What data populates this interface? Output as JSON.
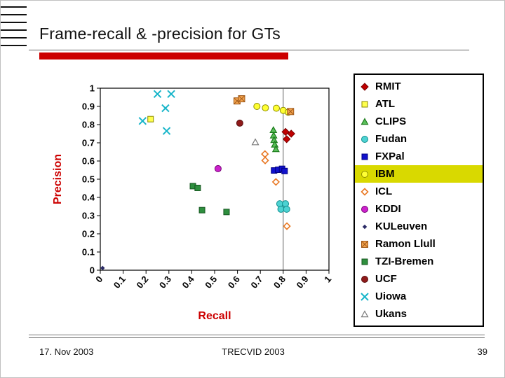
{
  "slide": {
    "title": "Frame-recall & -precision for GTs"
  },
  "footer": {
    "date": "17. Nov 2003",
    "center": "TRECVID 2003",
    "page": "39"
  },
  "colors": {
    "accent_red": "#cc0000",
    "legend_highlight": "#d9d900"
  },
  "chart_data": {
    "type": "scatter",
    "title": "",
    "xlabel": "Recall",
    "ylabel": "Precision",
    "xlim": [
      0,
      1
    ],
    "ylim": [
      0,
      1
    ],
    "grid_x": [
      0.8
    ],
    "legend_position": "right",
    "xtick_labels": [
      "0",
      "0.1",
      "0.2",
      "0.3",
      "0.4",
      "0.5",
      "0.6",
      "0.7",
      "0.8",
      "0.9",
      "1"
    ],
    "ytick_labels": [
      "0",
      "0.1",
      "0.2",
      "0.3",
      "0.4",
      "0.5",
      "0.6",
      "0.7",
      "0.8",
      "0.9",
      "1"
    ],
    "series": [
      {
        "label": "RMIT",
        "marker": "diamond",
        "fill": "#c00000",
        "stroke": "#7a0000",
        "size": 5,
        "points": [
          [
            0.81,
            0.76
          ],
          [
            0.835,
            0.75
          ],
          [
            0.815,
            0.72
          ]
        ]
      },
      {
        "label": "ATL",
        "marker": "square",
        "fill": "#ffff4d",
        "stroke": "#8a8a00",
        "points": [
          [
            0.22,
            0.83
          ]
        ]
      },
      {
        "label": "CLIPS",
        "marker": "triangle",
        "fill": "#5abf5a",
        "stroke": "#1a7a1a",
        "points": [
          [
            0.757,
            0.77
          ],
          [
            0.758,
            0.74
          ],
          [
            0.76,
            0.715
          ],
          [
            0.763,
            0.69
          ],
          [
            0.768,
            0.665
          ]
        ]
      },
      {
        "label": "Fudan",
        "marker": "circle",
        "fill": "#4dd2d2",
        "stroke": "#0f8f8f",
        "points": [
          [
            0.785,
            0.365
          ],
          [
            0.81,
            0.365
          ],
          [
            0.79,
            0.335
          ],
          [
            0.815,
            0.335
          ]
        ]
      },
      {
        "label": "FXPal",
        "marker": "square",
        "fill": "#1111cc",
        "stroke": "#000080",
        "points": [
          [
            0.76,
            0.548
          ],
          [
            0.778,
            0.552
          ],
          [
            0.795,
            0.557
          ],
          [
            0.806,
            0.545
          ]
        ]
      },
      {
        "label": "IBM",
        "marker": "circle",
        "fill": "#ffff33",
        "stroke": "#8f8f00",
        "highlighted": true,
        "points": [
          [
            0.685,
            0.9
          ],
          [
            0.722,
            0.892
          ],
          [
            0.77,
            0.89
          ],
          [
            0.8,
            0.878
          ],
          [
            0.822,
            0.868
          ]
        ]
      },
      {
        "label": "ICL",
        "marker": "diamond-open",
        "fill": "none",
        "stroke": "#e87722",
        "points": [
          [
            0.72,
            0.638
          ],
          [
            0.721,
            0.603
          ],
          [
            0.768,
            0.485
          ],
          [
            0.816,
            0.242
          ]
        ]
      },
      {
        "label": "KDDI",
        "marker": "circle",
        "fill": "#cc22cc",
        "stroke": "#770077",
        "points": [
          [
            0.515,
            0.558
          ]
        ]
      },
      {
        "label": "KULeuven",
        "marker": "diamond",
        "fill": "#2b2b66",
        "stroke": "#2b2b66",
        "size": 2.5,
        "points": [
          [
            0.01,
            0.012
          ]
        ]
      },
      {
        "label": "Ramon Llull",
        "marker": "square-hatch",
        "fill": "#f2a24d",
        "stroke": "#a05a1a",
        "points": [
          [
            0.598,
            0.93
          ],
          [
            0.618,
            0.942
          ],
          [
            0.832,
            0.872
          ]
        ]
      },
      {
        "label": "TZI-Bremen",
        "marker": "square",
        "fill": "#2e8f3e",
        "stroke": "#14541e",
        "points": [
          [
            0.405,
            0.462
          ],
          [
            0.426,
            0.452
          ],
          [
            0.445,
            0.33
          ],
          [
            0.552,
            0.32
          ]
        ]
      },
      {
        "label": "UCF",
        "marker": "circle",
        "fill": "#8f1a1a",
        "stroke": "#5a0f0f",
        "points": [
          [
            0.61,
            0.808
          ]
        ]
      },
      {
        "label": "Uiowa",
        "marker": "x",
        "fill": "none",
        "stroke": "#17b5c9",
        "size": 5,
        "points": [
          [
            0.25,
            0.968
          ],
          [
            0.31,
            0.968
          ],
          [
            0.285,
            0.89
          ],
          [
            0.185,
            0.82
          ],
          [
            0.29,
            0.765
          ]
        ]
      },
      {
        "label": "Ukans",
        "marker": "triangle-open",
        "fill": "#ffffff",
        "stroke": "#7a7a7a",
        "points": [
          [
            0.678,
            0.703
          ]
        ]
      }
    ]
  }
}
